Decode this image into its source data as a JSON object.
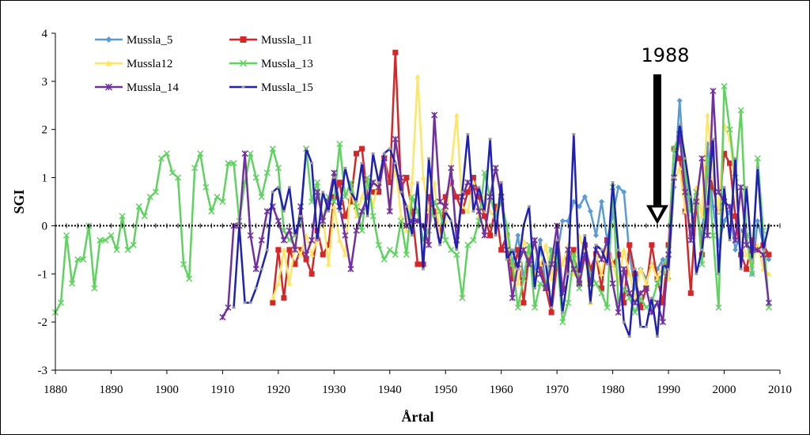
{
  "chart_data": {
    "type": "line",
    "xlabel": "Årtal",
    "ylabel": "SGI",
    "xlim": [
      1880,
      2010
    ],
    "ylim": [
      -3,
      4
    ],
    "x_ticks": [
      "1880",
      "1890",
      "1900",
      "1910",
      "1920",
      "1930",
      "1940",
      "1950",
      "1960",
      "1970",
      "1980",
      "1990",
      "2000",
      "2010"
    ],
    "y_ticks": [
      "4",
      "3",
      "2",
      "1",
      "0",
      "-1",
      "-2",
      "-3"
    ],
    "grid": false,
    "legend": "top-left",
    "annotation": {
      "text": "1988",
      "x": 1988,
      "y": 0
    },
    "series": [
      {
        "name": "Mussla_5",
        "color": "#5b9bd5",
        "marker": "diamond",
        "x": [
          1960,
          1961,
          1962,
          1963,
          1964,
          1965,
          1966,
          1967,
          1968,
          1969,
          1970,
          1971,
          1972,
          1973,
          1974,
          1975,
          1976,
          1977,
          1978,
          1979,
          1980,
          1981,
          1982,
          1983,
          1984,
          1985,
          1986,
          1987,
          1988,
          1989,
          1990,
          1991,
          1992,
          1993,
          1994,
          1995,
          1996,
          1997,
          1998,
          1999,
          2000,
          2001,
          2002,
          2003,
          2004,
          2005,
          2006,
          2007,
          2008
        ],
        "y": [
          -0.5,
          -0.3,
          -0.8,
          -0.2,
          -1.1,
          -0.6,
          -0.9,
          -0.3,
          -1.3,
          -0.5,
          -0.6,
          0.1,
          0.1,
          0.5,
          0.4,
          0.6,
          0.3,
          -0.2,
          0.5,
          -0.3,
          0.2,
          0.8,
          0.7,
          -0.6,
          -1.3,
          -0.9,
          -1.1,
          -0.8,
          -0.9,
          -0.7,
          -1.1,
          0.8,
          2.6,
          0.9,
          -0.2,
          0.4,
          -0.3,
          1.7,
          0.4,
          -0.4,
          0.1,
          0.3,
          -0.5,
          -0.1,
          -0.2,
          -1.0,
          0.1,
          -0.4,
          -0.7
        ]
      },
      {
        "name": "Mussla_11",
        "color": "#d62728",
        "marker": "square",
        "x": [
          1919,
          1920,
          1921,
          1922,
          1923,
          1924,
          1925,
          1926,
          1927,
          1928,
          1929,
          1930,
          1931,
          1932,
          1933,
          1934,
          1935,
          1936,
          1937,
          1938,
          1939,
          1940,
          1941,
          1942,
          1943,
          1944,
          1945,
          1946,
          1947,
          1948,
          1949,
          1950,
          1951,
          1952,
          1953,
          1954,
          1955,
          1956,
          1957,
          1958,
          1959,
          1960,
          1961,
          1962,
          1963,
          1964,
          1965,
          1966,
          1967,
          1968,
          1969,
          1970,
          1971,
          1972,
          1973,
          1974,
          1975,
          1976,
          1977,
          1978,
          1979,
          1980,
          1981,
          1982,
          1983,
          1984,
          1985,
          1986,
          1987,
          1988,
          1989,
          1990,
          1991,
          1992,
          1993,
          1994,
          1995,
          1996,
          1997,
          1998,
          1999,
          2000,
          2001,
          2002,
          2003,
          2004,
          2005,
          2006,
          2007,
          2008
        ],
        "y": [
          -1.6,
          -0.5,
          -1.5,
          -0.5,
          -0.8,
          -0.5,
          -0.7,
          -1.0,
          -0.1,
          -0.6,
          -0.4,
          0.6,
          0.9,
          0.2,
          0.5,
          1.5,
          1.6,
          0.6,
          0.7,
          0.7,
          1.4,
          0.9,
          3.6,
          0.8,
          1.0,
          0.3,
          -0.8,
          -0.8,
          0.6,
          0.3,
          -0.2,
          0.6,
          0.9,
          0.6,
          0.3,
          0.7,
          1.0,
          0.6,
          0.2,
          -0.2,
          0.4,
          -0.5,
          -0.2,
          -1.1,
          -0.5,
          -1.6,
          -0.6,
          -1.0,
          -0.8,
          -1.3,
          -1.8,
          -0.8,
          -1.3,
          -0.7,
          -0.5,
          -1.2,
          -0.4,
          -0.9,
          -0.6,
          -1.3,
          -0.3,
          -0.8,
          -0.6,
          -1.6,
          -0.4,
          -1.0,
          -1.7,
          -1.3,
          -0.4,
          -1.1,
          -1.6,
          -0.4,
          1.6,
          1.4,
          0.3,
          -1.4,
          0.5,
          -0.6,
          1.2,
          0.8,
          0.3,
          1.5,
          1.3,
          0.2,
          -0.6,
          -0.9,
          -0.3,
          -0.5,
          -0.4,
          -0.6
        ]
      },
      {
        "name": "Mussla12",
        "color": "#ffe566",
        "marker": "triangle",
        "x": [
          1919,
          1920,
          1921,
          1922,
          1923,
          1924,
          1925,
          1926,
          1927,
          1928,
          1929,
          1930,
          1931,
          1932,
          1933,
          1934,
          1935,
          1936,
          1937,
          1938,
          1939,
          1940,
          1941,
          1942,
          1943,
          1944,
          1945,
          1946,
          1947,
          1948,
          1949,
          1950,
          1951,
          1952,
          1953,
          1954,
          1955,
          1956,
          1957,
          1958,
          1959,
          1960,
          1961,
          1962,
          1963,
          1964,
          1965,
          1966,
          1967,
          1968,
          1969,
          1970,
          1971,
          1972,
          1973,
          1974,
          1975,
          1976,
          1977,
          1978,
          1979,
          1980,
          1981,
          1982,
          1983,
          1984,
          1985,
          1986,
          1987,
          1988,
          1989,
          1990,
          1991,
          1992,
          1993,
          1994,
          1995,
          1996,
          1997,
          1998,
          1999,
          2000,
          2001,
          2002,
          2003,
          2004,
          2005,
          2006,
          2007,
          2008
        ],
        "y": [
          -1.5,
          -1.2,
          -0.5,
          -1.2,
          -0.4,
          -0.6,
          -0.2,
          -0.6,
          -0.3,
          0.2,
          -0.8,
          0.4,
          -0.3,
          -0.6,
          0.8,
          0.2,
          0.6,
          0.9,
          0.4,
          1.0,
          1.5,
          0.3,
          1.3,
          0.2,
          -0.1,
          0.9,
          3.1,
          1.0,
          0.3,
          0.9,
          -0.3,
          0.1,
          1.2,
          2.3,
          0.4,
          0.3,
          0.9,
          0.2,
          0.6,
          0.3,
          0.1,
          0.9,
          -0.3,
          -0.8,
          -1.2,
          -0.3,
          -0.6,
          -1.0,
          -0.8,
          -0.4,
          -1.1,
          -0.3,
          -0.8,
          -0.4,
          -1.0,
          -0.2,
          -0.6,
          -1.6,
          -0.6,
          -1.0,
          -0.4,
          -0.8,
          -1.2,
          -0.5,
          -1.0,
          -1.5,
          -0.9,
          -1.2,
          -0.8,
          -1.1,
          -0.8,
          -1.1,
          0.9,
          1.2,
          0.3,
          0.1,
          0.8,
          0.2,
          2.3,
          1.0,
          0.3,
          2.1,
          1.8,
          0.9,
          -0.3,
          -0.6,
          -0.8,
          -0.4,
          -0.9,
          -1.0
        ]
      },
      {
        "name": "Mussla_13",
        "color": "#5fd35f",
        "marker": "x",
        "x": [
          1880,
          1881,
          1882,
          1883,
          1884,
          1885,
          1886,
          1887,
          1888,
          1889,
          1890,
          1891,
          1892,
          1893,
          1894,
          1895,
          1896,
          1897,
          1898,
          1899,
          1900,
          1901,
          1902,
          1903,
          1904,
          1905,
          1906,
          1907,
          1908,
          1909,
          1910,
          1911,
          1912,
          1913,
          1914,
          1915,
          1916,
          1917,
          1918,
          1919,
          1920,
          1921,
          1922,
          1923,
          1924,
          1925,
          1926,
          1927,
          1928,
          1929,
          1930,
          1931,
          1932,
          1933,
          1934,
          1935,
          1936,
          1937,
          1938,
          1939,
          1940,
          1941,
          1942,
          1943,
          1944,
          1945,
          1946,
          1947,
          1948,
          1949,
          1950,
          1951,
          1952,
          1953,
          1954,
          1955,
          1956,
          1957,
          1958,
          1959,
          1960,
          1961,
          1962,
          1963,
          1964,
          1965,
          1966,
          1967,
          1968,
          1969,
          1970,
          1971,
          1972,
          1973,
          1974,
          1975,
          1976,
          1977,
          1978,
          1979,
          1980,
          1981,
          1982,
          1983,
          1984,
          1985,
          1986,
          1987,
          1988,
          1989,
          1990,
          1991,
          1992,
          1993,
          1994,
          1995,
          1996,
          1997,
          1998,
          1999,
          2000,
          2001,
          2002,
          2003,
          2004,
          2005,
          2006,
          2007,
          2008
        ],
        "y": [
          -1.8,
          -1.6,
          -0.2,
          -1.2,
          -0.7,
          -0.7,
          0.0,
          -1.3,
          -0.3,
          -0.3,
          -0.2,
          -0.5,
          0.2,
          -0.5,
          -0.4,
          0.4,
          0.2,
          0.6,
          0.7,
          1.4,
          1.5,
          1.1,
          1.0,
          -0.8,
          -1.1,
          1.2,
          1.5,
          0.8,
          0.3,
          0.6,
          0.5,
          1.3,
          1.3,
          0.1,
          0.9,
          1.5,
          1.0,
          0.6,
          1.1,
          1.6,
          1.2,
          -0.1,
          -0.3,
          -0.2,
          0.1,
          1.6,
          0.5,
          0.9,
          0.1,
          0.6,
          0.5,
          1.7,
          0.6,
          0.9,
          0.4,
          -0.1,
          1.0,
          0.2,
          -0.4,
          -0.7,
          -0.5,
          -0.6,
          0.1,
          -0.6,
          0.6,
          0.3,
          -0.3,
          -0.1,
          0.5,
          0.3,
          -0.3,
          -0.5,
          -0.6,
          -1.5,
          -0.4,
          -0.3,
          0.1,
          1.1,
          0.6,
          0.2,
          0.5,
          0.0,
          -0.8,
          -1.7,
          -1.1,
          -0.4,
          -1.7,
          -1.2,
          -1.3,
          -0.5,
          -0.6,
          -2.0,
          -1.6,
          -0.6,
          -1.3,
          -0.6,
          -1.0,
          -1.2,
          -1.4,
          -1.7,
          0.8,
          -1.6,
          -1.3,
          -1.5,
          -1.8,
          -1.5,
          -1.7,
          -1.6,
          -1.2,
          -1.0,
          -0.5,
          1.6,
          1.9,
          1.1,
          0.3,
          0.7,
          -0.8,
          1.4,
          -0.2,
          -1.7,
          2.9,
          2.0,
          1.0,
          2.4,
          -0.2,
          -1.0,
          1.4,
          -0.1,
          -1.7
        ]
      },
      {
        "name": "Mussla_14",
        "color": "#7030a0",
        "marker": "star",
        "x": [
          1910,
          1911,
          1912,
          1913,
          1914,
          1915,
          1916,
          1917,
          1918,
          1919,
          1920,
          1921,
          1922,
          1923,
          1924,
          1925,
          1926,
          1927,
          1928,
          1929,
          1930,
          1931,
          1932,
          1933,
          1934,
          1935,
          1936,
          1937,
          1938,
          1939,
          1940,
          1941,
          1942,
          1943,
          1944,
          1945,
          1946,
          1947,
          1948,
          1949,
          1950,
          1951,
          1952,
          1953,
          1954,
          1955,
          1956,
          1957,
          1958,
          1959,
          1960,
          1961,
          1962,
          1963,
          1964,
          1965,
          1966,
          1967,
          1968,
          1969,
          1970,
          1971,
          1972,
          1973,
          1974,
          1975,
          1976,
          1977,
          1978,
          1979,
          1980,
          1981,
          1982,
          1983,
          1984,
          1985,
          1986,
          1987,
          1988,
          1989,
          1990,
          1991,
          1992,
          1993,
          1994,
          1995,
          1996,
          1997,
          1998,
          1999,
          2000,
          2001,
          2002,
          2003,
          2004,
          2005,
          2006,
          2007,
          2008
        ],
        "y": [
          -1.9,
          -1.7,
          0.0,
          0.0,
          1.5,
          -0.2,
          -0.9,
          -0.3,
          0.3,
          0.4,
          0.1,
          -0.3,
          -0.1,
          -0.5,
          0.4,
          -0.6,
          -0.3,
          0.7,
          0.1,
          0.5,
          1.1,
          0.4,
          -0.2,
          -0.9,
          -0.1,
          0.3,
          0.6,
          0.9,
          0.8,
          1.4,
          0.3,
          1.8,
          1.0,
          0.0,
          0.1,
          0.1,
          0.0,
          -0.4,
          2.3,
          0.5,
          0.4,
          1.2,
          -0.3,
          0.6,
          0.9,
          0.8,
          0.3,
          -0.2,
          0.6,
          1.2,
          0.6,
          -0.5,
          -1.5,
          -0.8,
          -0.5,
          -0.8,
          -0.3,
          -1.0,
          -1.3,
          -0.8,
          0.0,
          -1.4,
          -0.5,
          -0.9,
          -1.2,
          -0.6,
          -1.2,
          -0.5,
          -0.7,
          -0.3,
          -1.2,
          -1.8,
          -0.9,
          -1.4,
          -1.6,
          -1.4,
          -1.3,
          -1.8,
          -1.6,
          -2.0,
          -0.6,
          1.0,
          1.9,
          0.7,
          -0.3,
          0.5,
          1.4,
          -0.2,
          2.8,
          0.7,
          0.5,
          0.4,
          -0.3,
          0.8,
          -0.4,
          -0.5,
          -0.5,
          -0.6,
          -1.6
        ]
      },
      {
        "name": "Mussla_15",
        "color": "#1f20b4",
        "marker": "dash",
        "x": [
          1912,
          1913,
          1914,
          1915,
          1916,
          1917,
          1918,
          1919,
          1920,
          1921,
          1922,
          1923,
          1924,
          1925,
          1926,
          1927,
          1928,
          1929,
          1930,
          1931,
          1932,
          1933,
          1934,
          1935,
          1936,
          1937,
          1938,
          1939,
          1940,
          1941,
          1942,
          1943,
          1944,
          1945,
          1946,
          1947,
          1948,
          1949,
          1950,
          1951,
          1952,
          1953,
          1954,
          1955,
          1956,
          1957,
          1958,
          1959,
          1960,
          1961,
          1962,
          1963,
          1964,
          1965,
          1966,
          1967,
          1968,
          1969,
          1970,
          1971,
          1972,
          1973,
          1974,
          1975,
          1976,
          1977,
          1978,
          1979,
          1980,
          1981,
          1982,
          1983,
          1984,
          1985,
          1986,
          1987,
          1988,
          1989,
          1990,
          1991,
          1992,
          1993,
          1994,
          1995,
          1996,
          1997,
          1998,
          1999,
          2000,
          2001,
          2002,
          2003,
          2004,
          2005,
          2006,
          2007,
          2008
        ],
        "y": [
          -1.7,
          0.0,
          -1.6,
          -1.6,
          -1.3,
          -0.9,
          -0.5,
          0.7,
          0.8,
          0.3,
          0.8,
          -0.2,
          0.2,
          1.6,
          1.3,
          -0.3,
          0.7,
          0.3,
          1.0,
          0.3,
          1.2,
          0.7,
          0.5,
          1.3,
          0.2,
          1.5,
          0.9,
          1.5,
          1.6,
          1.3,
          0.7,
          0.4,
          -0.2,
          0.9,
          -0.9,
          1.4,
          0.2,
          -0.4,
          0.3,
          0.1,
          -0.5,
          0.7,
          1.9,
          0.3,
          0.8,
          0.3,
          1.8,
          -0.2,
          0.9,
          -0.7,
          -0.5,
          -0.9,
          0.0,
          0.4,
          -1.3,
          -0.4,
          -0.8,
          -1.7,
          -0.3,
          -1.8,
          -1.0,
          1.9,
          -1.0,
          -0.2,
          -1.6,
          -0.4,
          -0.5,
          -0.8,
          0.9,
          -0.5,
          -2.0,
          -2.3,
          -0.9,
          -2.1,
          -2.1,
          -1.5,
          -2.3,
          -0.8,
          -0.9,
          1.0,
          2.1,
          1.4,
          0.6,
          -1.0,
          -0.5,
          0.4,
          1.8,
          -1.0,
          0.8,
          -0.3,
          1.4,
          -0.9,
          0.8,
          -0.7,
          1.2,
          -0.5,
          0.0
        ]
      }
    ]
  }
}
